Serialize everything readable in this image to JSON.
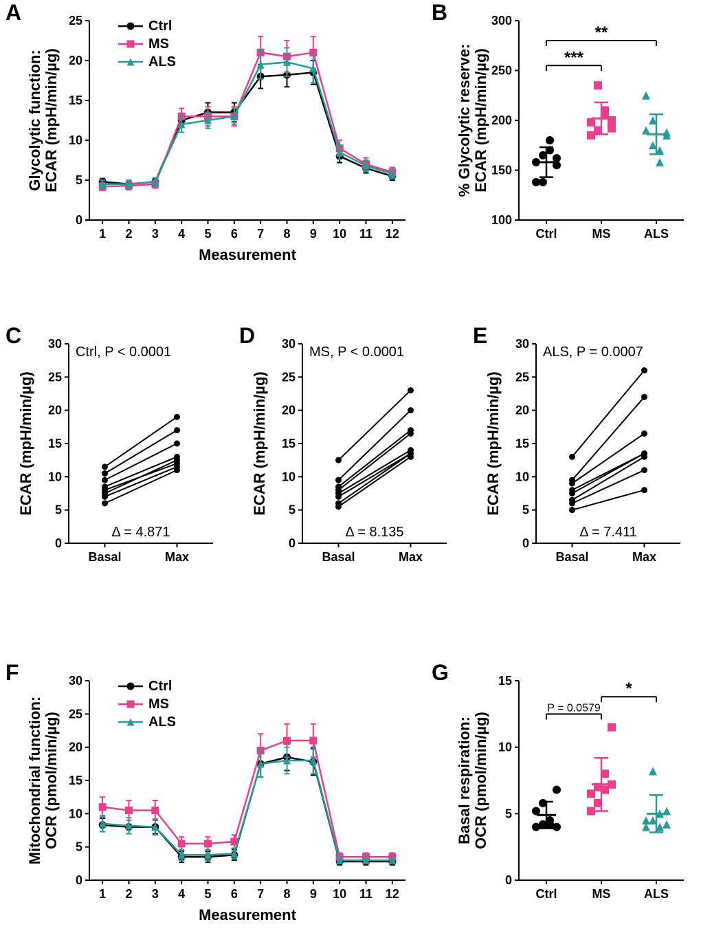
{
  "colors": {
    "ctrl": "#000000",
    "ms": "#e83e8c",
    "als": "#259b9a",
    "bg": "#ffffff"
  },
  "markers": {
    "ctrl": "circle",
    "ms": "square",
    "als": "triangle"
  },
  "legend": {
    "ctrl": "Ctrl",
    "ms": "MS",
    "als": "ALS"
  },
  "panelA": {
    "letter": "A",
    "ylabel1": "Glycolytic function:",
    "ylabel2": "ECAR (mpH/min/µg)",
    "xlabel": "Measurement",
    "x": [
      1,
      2,
      3,
      4,
      5,
      6,
      7,
      8,
      9,
      10,
      11,
      12
    ],
    "ylim": [
      0,
      25
    ],
    "ytick_step": 5,
    "ctrl": {
      "y": [
        4.8,
        4.5,
        4.8,
        12.5,
        13.5,
        13.5,
        18.0,
        18.2,
        18.5,
        8.0,
        6.5,
        5.5
      ],
      "err": [
        0.4,
        0.4,
        0.4,
        0.8,
        1.2,
        1.2,
        1.5,
        1.5,
        1.5,
        0.8,
        0.6,
        0.5
      ]
    },
    "ms": {
      "y": [
        4.2,
        4.3,
        4.5,
        13.0,
        13.0,
        13.0,
        21.0,
        20.5,
        21.0,
        9.0,
        7.0,
        6.0
      ],
      "err": [
        0.5,
        0.5,
        0.5,
        1.0,
        1.2,
        1.2,
        2.0,
        2.0,
        2.0,
        1.0,
        0.8,
        0.6
      ]
    },
    "als": {
      "y": [
        4.5,
        4.5,
        4.8,
        12.0,
        12.5,
        13.0,
        19.5,
        19.8,
        19.0,
        8.5,
        6.8,
        5.8
      ],
      "err": [
        0.5,
        0.5,
        0.5,
        1.0,
        1.0,
        1.0,
        1.8,
        1.8,
        1.8,
        0.9,
        0.7,
        0.6
      ]
    }
  },
  "panelB": {
    "letter": "B",
    "ylabel1": "% Glycolytic reserve:",
    "ylabel2": "ECAR (mpH/min/µg)",
    "xcats": [
      "Ctrl",
      "MS",
      "ALS"
    ],
    "ylim": [
      100,
      300
    ],
    "ytick_step": 50,
    "ctrl": {
      "pts": [
        158,
        138,
        180,
        155,
        138,
        165,
        170,
        162
      ],
      "mean": 158,
      "sd": 15
    },
    "ms": {
      "pts": [
        198,
        235,
        205,
        192,
        185,
        190,
        210,
        200
      ],
      "mean": 202,
      "sd": 16
    },
    "als": {
      "pts": [
        190,
        175,
        158,
        188,
        225,
        200,
        170,
        185
      ],
      "mean": 186,
      "sd": 20
    },
    "sig": [
      {
        "from": 0,
        "to": 1,
        "y": 255,
        "label": "***"
      },
      {
        "from": 0,
        "to": 2,
        "y": 280,
        "label": "**"
      }
    ]
  },
  "panelC": {
    "letter": "C",
    "title": "Ctrl, P < 0.0001",
    "delta": "Δ = 4.871",
    "ylabel": "ECAR (mpH/min/µg)",
    "ylim": [
      0,
      30
    ],
    "ytick_step": 5,
    "xcats": [
      "Basal",
      "Max"
    ],
    "pairs": [
      [
        11.5,
        19
      ],
      [
        10.5,
        17
      ],
      [
        9.5,
        15
      ],
      [
        8.5,
        13
      ],
      [
        7.5,
        12.5
      ],
      [
        7.0,
        11.5
      ],
      [
        6.0,
        11
      ],
      [
        8.0,
        12
      ]
    ]
  },
  "panelD": {
    "letter": "D",
    "title": "MS, P < 0.0001",
    "delta": "Δ = 8.135",
    "ylabel": "ECAR (mpH/min/µg)",
    "ylim": [
      0,
      30
    ],
    "ytick_step": 5,
    "xcats": [
      "Basal",
      "Max"
    ],
    "pairs": [
      [
        12.5,
        23
      ],
      [
        9.5,
        20
      ],
      [
        8.5,
        17
      ],
      [
        8.0,
        16.5
      ],
      [
        7.5,
        14
      ],
      [
        7.0,
        13.5
      ],
      [
        6.0,
        13.5
      ],
      [
        5.5,
        13
      ]
    ]
  },
  "panelE": {
    "letter": "E",
    "title": "ALS, P = 0.0007",
    "delta": "Δ = 7.411",
    "ylabel": "ECAR (mpH/min/µg)",
    "ylim": [
      0,
      30
    ],
    "ytick_step": 5,
    "xcats": [
      "Basal",
      "Max"
    ],
    "pairs": [
      [
        13,
        26
      ],
      [
        9.5,
        22
      ],
      [
        9.0,
        16.5
      ],
      [
        8.0,
        13.5
      ],
      [
        7.5,
        13.5
      ],
      [
        6.5,
        13
      ],
      [
        6.0,
        11
      ],
      [
        5.0,
        8
      ]
    ]
  },
  "panelF": {
    "letter": "F",
    "ylabel1": "Mitochondrial function:",
    "ylabel2": "OCR (pmol/min/µg)",
    "xlabel": "Measurement",
    "x": [
      1,
      2,
      3,
      4,
      5,
      6,
      7,
      8,
      9,
      10,
      11,
      12
    ],
    "ylim": [
      0,
      30
    ],
    "ytick_step": 5,
    "ctrl": {
      "y": [
        8.3,
        8.0,
        8.0,
        3.5,
        3.5,
        3.8,
        17.5,
        18.5,
        17.8,
        2.8,
        2.8,
        2.8
      ],
      "err": [
        1.0,
        1.0,
        1.0,
        0.8,
        0.8,
        0.8,
        2.0,
        2.0,
        2.0,
        0.5,
        0.5,
        0.5
      ]
    },
    "ms": {
      "y": [
        11.0,
        10.5,
        10.5,
        5.5,
        5.5,
        5.8,
        19.5,
        21.0,
        21.0,
        3.5,
        3.5,
        3.5
      ],
      "err": [
        1.5,
        1.5,
        1.5,
        1.0,
        1.0,
        1.0,
        2.5,
        2.5,
        2.5,
        0.6,
        0.6,
        0.6
      ]
    },
    "als": {
      "y": [
        8.5,
        8.2,
        8.0,
        3.8,
        3.8,
        4.0,
        17.5,
        18.0,
        18.0,
        3.0,
        3.0,
        3.0
      ],
      "err": [
        1.2,
        1.2,
        1.2,
        0.8,
        0.8,
        0.8,
        2.0,
        2.0,
        2.0,
        0.5,
        0.5,
        0.5
      ]
    }
  },
  "panelG": {
    "letter": "G",
    "ylabel1": "Basal respiration:",
    "ylabel2": "OCR (pmol/min/µg)",
    "xcats": [
      "Ctrl",
      "MS",
      "ALS"
    ],
    "ylim": [
      0,
      15
    ],
    "ytick_step": 5,
    "ctrl": {
      "pts": [
        5.2,
        5.8,
        4.2,
        6.8,
        4.0,
        4.2,
        4.5,
        4.0
      ],
      "mean": 4.9,
      "sd": 1.0
    },
    "ms": {
      "pts": [
        6.5,
        7.0,
        8.0,
        11.5,
        5.2,
        5.8,
        6.8,
        7.2
      ],
      "mean": 7.2,
      "sd": 2.0
    },
    "als": {
      "pts": [
        4.5,
        8.2,
        4.0,
        5.2,
        4.0,
        4.5,
        5.0,
        4.2
      ],
      "mean": 5.0,
      "sd": 1.4
    },
    "sig": [
      {
        "from": 0,
        "to": 1,
        "y": 12.5,
        "label": "P = 0.0579",
        "textsize": 16
      },
      {
        "from": 1,
        "to": 2,
        "y": 13.8,
        "label": "*"
      }
    ]
  }
}
